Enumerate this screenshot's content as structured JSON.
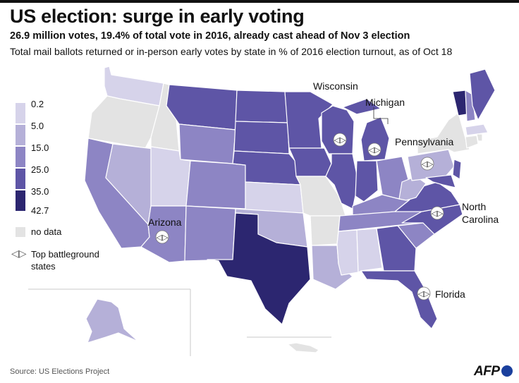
{
  "header": {
    "title": "US election: surge in early voting",
    "subtitle": "26.9 million votes, 19.4% of total vote in 2016, already cast ahead of Nov 3 election",
    "description": "Total mail ballots returned or in-person early votes by state in % of 2016 election turnout,  as of Oct 18"
  },
  "legend": {
    "ticks": [
      "0.2",
      "5.0",
      "15.0",
      "25.0",
      "35.0",
      "42.7"
    ],
    "colors": [
      "#d6d3ea",
      "#b5b0d8",
      "#8d85c4",
      "#5e55a6",
      "#2c2670"
    ],
    "nodata_label": "no data",
    "nodata_color": "#e3e3e3",
    "battleground_icon": "◁▷",
    "battleground_label": "Top battleground states"
  },
  "map_labels": {
    "wisconsin": "Wisconsin",
    "michigan": "Michigan",
    "pennsylvania": "Pennsylvania",
    "north_carolina_1": "North",
    "north_carolina_2": "Carolina",
    "arizona": "Arizona",
    "florida": "Florida"
  },
  "footer": {
    "source": "Source: US Elections Project",
    "logo": "AFP"
  }
}
